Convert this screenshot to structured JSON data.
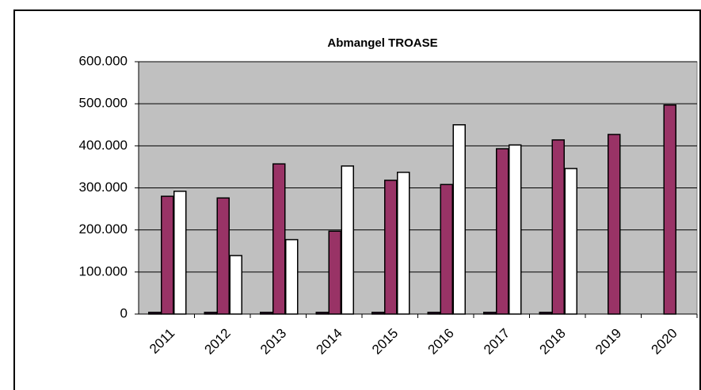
{
  "chart_data": {
    "type": "bar",
    "title": "Abmangel  TROASE",
    "categories": [
      "2011",
      "2012",
      "2013",
      "2014",
      "2015",
      "2016",
      "2017",
      "2018",
      "2019",
      "2020"
    ],
    "series": [
      {
        "color": "#330033",
        "values": [
          4000,
          4000,
          4000,
          4000,
          4000,
          4000,
          4000,
          4000,
          null,
          null
        ]
      },
      {
        "color": "#993366",
        "values": [
          280000,
          276000,
          357000,
          197000,
          318000,
          308000,
          393000,
          414000,
          427000,
          497000
        ]
      },
      {
        "color": "#ffffff",
        "values": [
          292000,
          139000,
          177000,
          352000,
          337000,
          450000,
          402000,
          346000,
          null,
          null
        ]
      }
    ],
    "ylim": [
      0,
      600000
    ],
    "yticks": [
      {
        "value": 0,
        "label": "0"
      },
      {
        "value": 100000,
        "label": "100.000"
      },
      {
        "value": 200000,
        "label": "200.000"
      },
      {
        "value": 300000,
        "label": "300.000"
      },
      {
        "value": 400000,
        "label": "400.000"
      },
      {
        "value": 500000,
        "label": "500.000"
      },
      {
        "value": 600000,
        "label": "600.000"
      }
    ],
    "grid": true,
    "plot_background": "#c0c0c0"
  }
}
